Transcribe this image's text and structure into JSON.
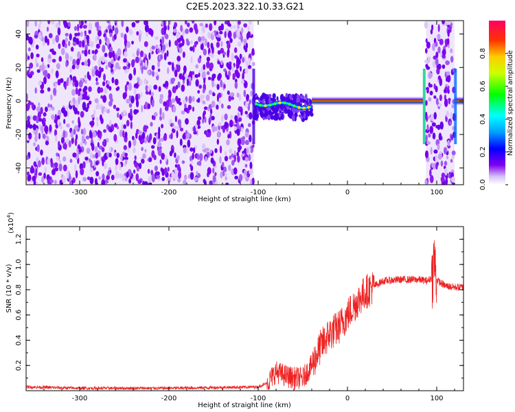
{
  "title": "C2E5.2023.322.10.33.G21",
  "colors": {
    "snr_line": "#ee2222",
    "spectrogram_noise": "#7a00ee",
    "spectrogram_noise_light": "#d2b8f7",
    "axis": "#000000"
  },
  "chart_data": [
    {
      "type": "heatmap",
      "xlabel": "Height of straight line (km)",
      "ylabel": "Frequency (Hz)",
      "xlim": [
        -360,
        130
      ],
      "ylim": [
        -50,
        48
      ],
      "x_ticks": [
        -300,
        -200,
        -100,
        0,
        100
      ],
      "y_ticks": [
        -40,
        -20,
        0,
        20,
        40
      ],
      "colorbar": {
        "label": "Normalized spectral amplitude",
        "range": [
          0.0,
          1.0
        ],
        "ticks": [
          "0.0",
          "0.2",
          "0.4",
          "0.6",
          "0.8"
        ],
        "tick_values": [
          0.0,
          0.2,
          0.4,
          0.6,
          0.8
        ]
      },
      "regions": [
        {
          "x": [
            -360,
            -105
          ],
          "kind": "broadband noise",
          "level": 0.15
        },
        {
          "x": [
            -105,
            -40
          ],
          "kind": "wavering signal trace",
          "freq_hz": [
            1,
            -3
          ],
          "level": 0.55
        },
        {
          "x": [
            -40,
            85
          ],
          "kind": "steady signal trace",
          "freq_hz": 0,
          "level": 0.85
        },
        {
          "x": [
            88,
            120
          ],
          "kind": "broadband noise",
          "level": 0.15
        },
        {
          "x": [
            120,
            130
          ],
          "kind": "steady signal trace",
          "freq_hz": 0,
          "level": 0.85
        }
      ]
    },
    {
      "type": "line",
      "xlabel": "Height of straight line (km)",
      "ylabel": "SNR (10 * v/v)",
      "y_multiplier": "(x10",
      "y_multiplier_exp": "4",
      "xlim": [
        -360,
        130
      ],
      "ylim": [
        0,
        1.3
      ],
      "x_ticks": [
        -300,
        -200,
        -100,
        0,
        100
      ],
      "y_ticks": [
        0.2,
        0.4,
        0.6,
        0.8,
        1.0,
        1.2
      ],
      "series": [
        {
          "x": [
            -360,
            -300,
            -200,
            -100,
            -90,
            -80,
            -70,
            -60,
            -50,
            -40,
            -30,
            -20,
            -10,
            0,
            10,
            20,
            30,
            40,
            60,
            80,
            90,
            95,
            97,
            100,
            105,
            110,
            120,
            130
          ],
          "y": [
            0.03,
            0.02,
            0.02,
            0.03,
            0.06,
            0.15,
            0.12,
            0.1,
            0.1,
            0.2,
            0.35,
            0.45,
            0.5,
            0.6,
            0.7,
            0.78,
            0.83,
            0.87,
            0.88,
            0.88,
            0.87,
            0.9,
            1.05,
            0.88,
            0.85,
            0.83,
            0.82,
            0.82
          ]
        }
      ]
    }
  ]
}
